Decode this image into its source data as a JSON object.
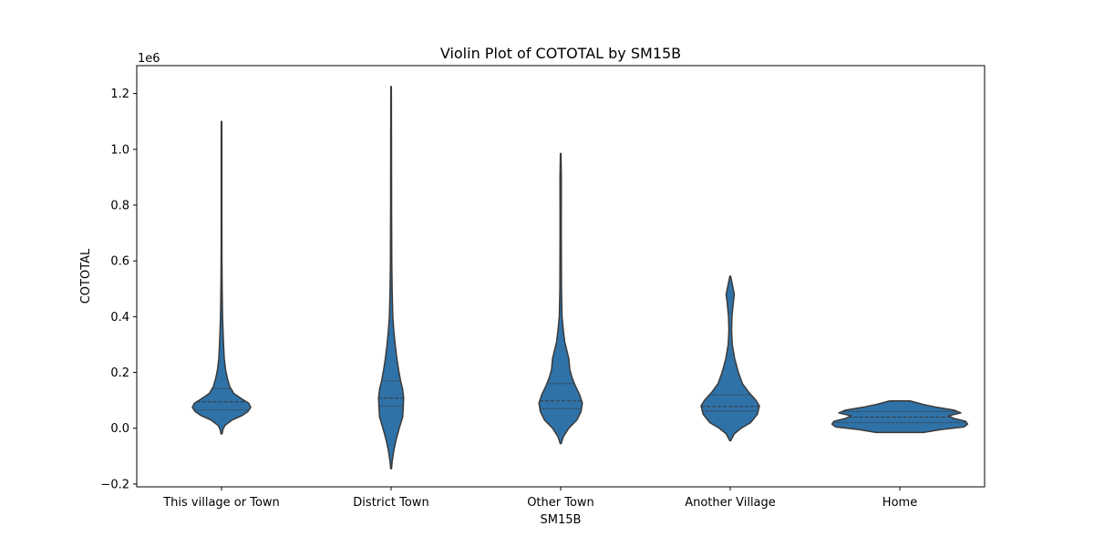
{
  "chart_data": {
    "type": "violin",
    "title": "Violin Plot of COTOTAL by SM15B",
    "xlabel": "SM15B",
    "ylabel": "COTOTAL",
    "y_scale_label": "1e6",
    "ylim": [
      -0.21,
      1.3
    ],
    "yticks": [
      -0.2,
      0.0,
      0.2,
      0.4,
      0.6,
      0.8,
      1.0,
      1.2
    ],
    "ytick_labels": [
      "−0.2",
      "0.0",
      "0.2",
      "0.4",
      "0.6",
      "0.8",
      "1.0",
      "1.2"
    ],
    "categories": [
      "This village or Town",
      "District Town",
      "Other Town",
      "Another Village",
      "Home"
    ],
    "fill_color": "#2f72a8",
    "edge_color": "#3a3a3a",
    "grid": false,
    "violins": [
      {
        "category": "This village or Town",
        "y_min": -0.02,
        "y_max": 1.1,
        "quartiles": [
          0.065,
          0.095,
          0.142
        ],
        "profile": [
          [
            -0.02,
            0.008
          ],
          [
            -0.005,
            0.02
          ],
          [
            0.01,
            0.05
          ],
          [
            0.03,
            0.16
          ],
          [
            0.045,
            0.3
          ],
          [
            0.06,
            0.39
          ],
          [
            0.075,
            0.43
          ],
          [
            0.09,
            0.4
          ],
          [
            0.105,
            0.3
          ],
          [
            0.125,
            0.18
          ],
          [
            0.15,
            0.12
          ],
          [
            0.18,
            0.085
          ],
          [
            0.21,
            0.06
          ],
          [
            0.25,
            0.04
          ],
          [
            0.3,
            0.03
          ],
          [
            0.35,
            0.022
          ],
          [
            0.4,
            0.015
          ],
          [
            0.5,
            0.009
          ],
          [
            0.6,
            0.006
          ],
          [
            0.8,
            0.005
          ],
          [
            1.0,
            0.005
          ],
          [
            1.1,
            0.004
          ]
        ]
      },
      {
        "category": "District Town",
        "y_min": -0.145,
        "y_max": 1.225,
        "quartiles": [
          0.08,
          0.108,
          0.17
        ],
        "profile": [
          [
            -0.145,
            0.006
          ],
          [
            -0.12,
            0.015
          ],
          [
            -0.08,
            0.04
          ],
          [
            -0.04,
            0.075
          ],
          [
            0.0,
            0.12
          ],
          [
            0.04,
            0.17
          ],
          [
            0.08,
            0.18
          ],
          [
            0.11,
            0.185
          ],
          [
            0.14,
            0.17
          ],
          [
            0.17,
            0.14
          ],
          [
            0.21,
            0.11
          ],
          [
            0.25,
            0.085
          ],
          [
            0.3,
            0.06
          ],
          [
            0.35,
            0.04
          ],
          [
            0.4,
            0.025
          ],
          [
            0.5,
            0.015
          ],
          [
            0.6,
            0.01
          ],
          [
            0.8,
            0.007
          ],
          [
            1.0,
            0.006
          ],
          [
            1.225,
            0.004
          ]
        ]
      },
      {
        "category": "Other Town",
        "y_min": -0.055,
        "y_max": 0.985,
        "quartiles": [
          0.07,
          0.098,
          0.16
        ],
        "profile": [
          [
            -0.055,
            0.006
          ],
          [
            -0.03,
            0.04
          ],
          [
            0.0,
            0.12
          ],
          [
            0.03,
            0.24
          ],
          [
            0.06,
            0.3
          ],
          [
            0.09,
            0.32
          ],
          [
            0.12,
            0.28
          ],
          [
            0.15,
            0.22
          ],
          [
            0.18,
            0.17
          ],
          [
            0.21,
            0.135
          ],
          [
            0.25,
            0.12
          ],
          [
            0.28,
            0.09
          ],
          [
            0.31,
            0.06
          ],
          [
            0.35,
            0.04
          ],
          [
            0.4,
            0.02
          ],
          [
            0.5,
            0.012
          ],
          [
            0.7,
            0.009
          ],
          [
            0.9,
            0.01
          ],
          [
            0.985,
            0.004
          ]
        ]
      },
      {
        "category": "Another Village",
        "y_min": -0.045,
        "y_max": 0.545,
        "quartiles": [
          0.062,
          0.078,
          0.12
        ],
        "profile": [
          [
            -0.045,
            0.006
          ],
          [
            -0.02,
            0.06
          ],
          [
            0.0,
            0.16
          ],
          [
            0.02,
            0.3
          ],
          [
            0.05,
            0.4
          ],
          [
            0.08,
            0.43
          ],
          [
            0.1,
            0.38
          ],
          [
            0.13,
            0.27
          ],
          [
            0.16,
            0.18
          ],
          [
            0.2,
            0.12
          ],
          [
            0.25,
            0.065
          ],
          [
            0.3,
            0.03
          ],
          [
            0.35,
            0.02
          ],
          [
            0.4,
            0.025
          ],
          [
            0.45,
            0.045
          ],
          [
            0.48,
            0.06
          ],
          [
            0.51,
            0.035
          ],
          [
            0.545,
            0.006
          ]
        ]
      },
      {
        "category": "Home",
        "y_min": -0.015,
        "y_max": 0.098,
        "quartiles": [
          0.02,
          0.04,
          0.06
        ],
        "profile": [
          [
            -0.015,
            0.35
          ],
          [
            -0.005,
            0.6
          ],
          [
            0.005,
            0.95
          ],
          [
            0.015,
            1.0
          ],
          [
            0.025,
            0.97
          ],
          [
            0.035,
            0.8
          ],
          [
            0.045,
            0.72
          ],
          [
            0.055,
            0.9
          ],
          [
            0.065,
            0.8
          ],
          [
            0.075,
            0.55
          ],
          [
            0.085,
            0.35
          ],
          [
            0.098,
            0.15
          ]
        ]
      }
    ]
  }
}
